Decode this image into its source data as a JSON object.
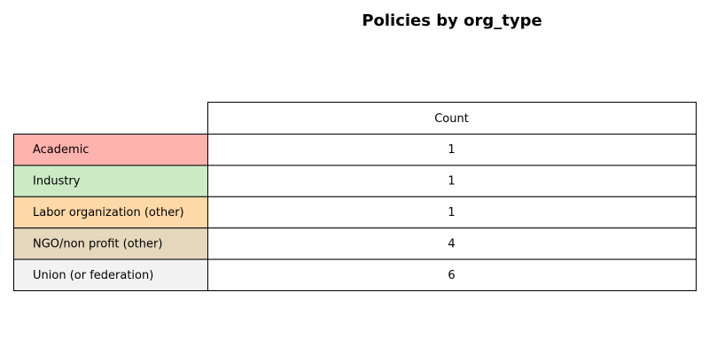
{
  "chart_data": {
    "type": "table",
    "title": "Policies by org_type",
    "column_headers": [
      "Count"
    ],
    "rows": [
      {
        "label": "Academic",
        "values": [
          1
        ],
        "color": "#FFB3AE"
      },
      {
        "label": "Industry",
        "values": [
          1
        ],
        "color": "#CCEBC5"
      },
      {
        "label": "Labor organization (other)",
        "values": [
          1
        ],
        "color": "#FFD9A8"
      },
      {
        "label": "NGO/non profit (other)",
        "values": [
          4
        ],
        "color": "#E5D8BD"
      },
      {
        "label": "Union (or federation)",
        "values": [
          6
        ],
        "color": "#F2F2F2"
      }
    ]
  }
}
